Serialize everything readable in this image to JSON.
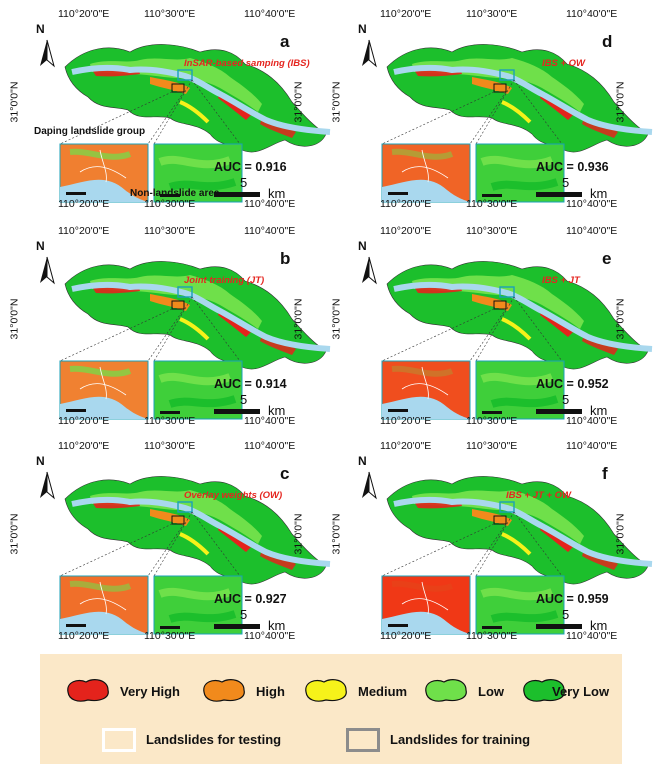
{
  "coords": {
    "top": [
      "110°20'0\"E",
      "110°30'0\"E",
      "110°40'0\"E"
    ],
    "bottom": [
      "110°20'0\"E",
      "110°30'0\"E",
      "110°40'0\"E"
    ],
    "lat": "31°0'0\"N"
  },
  "panels": [
    {
      "letter": "a",
      "method": "InSAR-based samping (IBS)",
      "auc": "AUC = 0.916"
    },
    {
      "letter": "b",
      "method": "Joint training (JT)",
      "auc": "AUC = 0.914"
    },
    {
      "letter": "c",
      "method": "Overlay weights (OW)",
      "auc": "AUC = 0.927"
    },
    {
      "letter": "d",
      "method": "IBS + OW",
      "auc": "AUC = 0.936"
    },
    {
      "letter": "e",
      "method": "IBS + JT",
      "auc": "AUC = 0.952"
    },
    {
      "letter": "f",
      "method": "IBS + JT + OW",
      "auc": "AUC = 0.959"
    }
  ],
  "scale": {
    "value": "5",
    "unit": "km"
  },
  "north": "N",
  "annotations": {
    "daping": "Daping landslide group",
    "nonlandslide": "Non-landslide area"
  },
  "legend": {
    "classes": [
      {
        "label": "Very High",
        "color": "#e4231c"
      },
      {
        "label": "High",
        "color": "#f18a1c"
      },
      {
        "label": "Medium",
        "color": "#f6f21a"
      },
      {
        "label": "Low",
        "color": "#6fe04a"
      },
      {
        "label": "Very Low",
        "color": "#1cbf2c"
      }
    ],
    "testing": "Landslides for testing",
    "training": "Landslides for training"
  },
  "colors": {
    "river": "#a9d8ee",
    "testing_box": "#ffffff",
    "training_box": "#8c8c8c",
    "inset_border": "#1aa0b8"
  }
}
